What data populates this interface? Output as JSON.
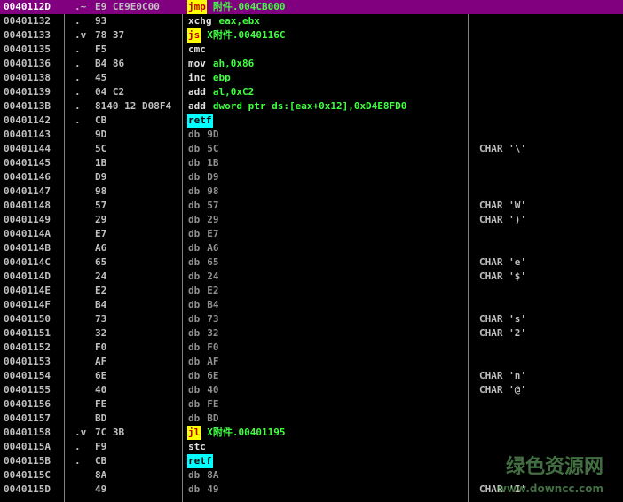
{
  "rows": [
    {
      "address": "0040112D",
      "marker": ".~",
      "hex": "E9 CE9E0C00",
      "mnemonic": "jmp",
      "operands": "附件.004CB000",
      "highlight": "yellow",
      "selected": true
    },
    {
      "address": "00401132",
      "marker": ".",
      "hex": "93",
      "mnemonic": "xchg",
      "operands": "eax,ebx"
    },
    {
      "address": "00401133",
      "marker": ".v",
      "hex": "78 37",
      "mnemonic": "js",
      "operands": "X附件.0040116C",
      "highlight": "yellow"
    },
    {
      "address": "00401135",
      "marker": ".",
      "hex": "F5",
      "mnemonic": "cmc"
    },
    {
      "address": "00401136",
      "marker": ".",
      "hex": "B4 86",
      "mnemonic": "mov",
      "operands": "ah,0x86"
    },
    {
      "address": "00401138",
      "marker": ".",
      "hex": "45",
      "mnemonic": "inc",
      "operands": "ebp"
    },
    {
      "address": "00401139",
      "marker": ".",
      "hex": "04 C2",
      "mnemonic": "add",
      "operands": "al,0xC2"
    },
    {
      "address": "0040113B",
      "marker": ".",
      "hex": "8140 12 D08F4",
      "mnemonic": "add",
      "operands": "dword ptr ds:[eax+0x12],0xD4E8FD0"
    },
    {
      "address": "00401142",
      "marker": ".",
      "hex": "CB",
      "mnemonic": "retf",
      "highlight": "cyan"
    },
    {
      "address": "00401143",
      "hex": "9D",
      "mnemonic": "db",
      "operands": "9D"
    },
    {
      "address": "00401144",
      "hex": "5C",
      "mnemonic": "db",
      "operands": "5C",
      "comment": "CHAR '\\'"
    },
    {
      "address": "00401145",
      "hex": "1B",
      "mnemonic": "db",
      "operands": "1B"
    },
    {
      "address": "00401146",
      "hex": "D9",
      "mnemonic": "db",
      "operands": "D9"
    },
    {
      "address": "00401147",
      "hex": "98",
      "mnemonic": "db",
      "operands": "98"
    },
    {
      "address": "00401148",
      "hex": "57",
      "mnemonic": "db",
      "operands": "57",
      "comment": "CHAR 'W'"
    },
    {
      "address": "00401149",
      "hex": "29",
      "mnemonic": "db",
      "operands": "29",
      "comment": "CHAR ')'"
    },
    {
      "address": "0040114A",
      "hex": "E7",
      "mnemonic": "db",
      "operands": "E7"
    },
    {
      "address": "0040114B",
      "hex": "A6",
      "mnemonic": "db",
      "operands": "A6"
    },
    {
      "address": "0040114C",
      "hex": "65",
      "mnemonic": "db",
      "operands": "65",
      "comment": "CHAR 'e'"
    },
    {
      "address": "0040114D",
      "hex": "24",
      "mnemonic": "db",
      "operands": "24",
      "comment": "CHAR '$'"
    },
    {
      "address": "0040114E",
      "hex": "E2",
      "mnemonic": "db",
      "operands": "E2"
    },
    {
      "address": "0040114F",
      "hex": "B4",
      "mnemonic": "db",
      "operands": "B4"
    },
    {
      "address": "00401150",
      "hex": "73",
      "mnemonic": "db",
      "operands": "73",
      "comment": "CHAR 's'"
    },
    {
      "address": "00401151",
      "hex": "32",
      "mnemonic": "db",
      "operands": "32",
      "comment": "CHAR '2'"
    },
    {
      "address": "00401152",
      "hex": "F0",
      "mnemonic": "db",
      "operands": "F0"
    },
    {
      "address": "00401153",
      "hex": "AF",
      "mnemonic": "db",
      "operands": "AF"
    },
    {
      "address": "00401154",
      "hex": "6E",
      "mnemonic": "db",
      "operands": "6E",
      "comment": "CHAR 'n'"
    },
    {
      "address": "00401155",
      "hex": "40",
      "mnemonic": "db",
      "operands": "40",
      "comment": "CHAR '@'"
    },
    {
      "address": "00401156",
      "hex": "FE",
      "mnemonic": "db",
      "operands": "FE"
    },
    {
      "address": "00401157",
      "hex": "BD",
      "mnemonic": "db",
      "operands": "BD"
    },
    {
      "address": "00401158",
      "marker": ".v",
      "hex": "7C 3B",
      "mnemonic": "jl",
      "operands": "X附件.00401195",
      "highlight": "yellow"
    },
    {
      "address": "0040115A",
      "marker": ".",
      "hex": "F9",
      "mnemonic": "stc"
    },
    {
      "address": "0040115B",
      "marker": ".",
      "hex": "CB",
      "mnemonic": "retf",
      "highlight": "cyan"
    },
    {
      "address": "0040115C",
      "hex": "8A",
      "mnemonic": "db",
      "operands": "8A"
    },
    {
      "address": "0040115D",
      "hex": "49",
      "mnemonic": "db",
      "operands": "49",
      "comment": "CHAR 'I'"
    }
  ],
  "watermark": {
    "title": "绿色资源网",
    "url": "www.downcc.com"
  }
}
